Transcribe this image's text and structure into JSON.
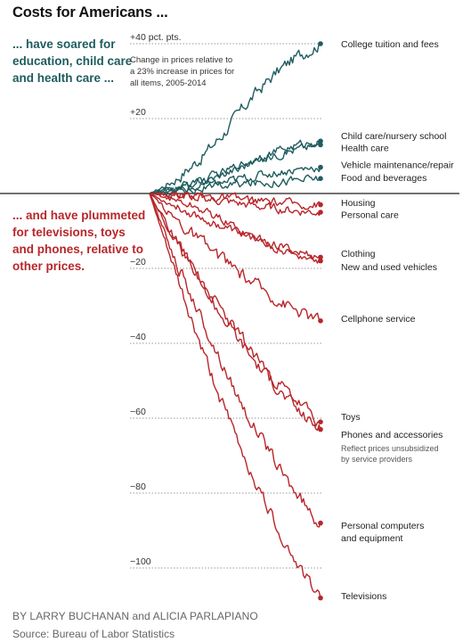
{
  "title": "Costs for Americans ...",
  "side_up": "... have soared for education, child care and health care ...",
  "side_down": "... and have plummeted for televisions, toys and phones, relative to other prices.",
  "byline": "BY LARRY BUCHANAN and ALICIA PARLAPIANO",
  "source": "Source: Bureau of Labor Statistics",
  "colors": {
    "up": "#1f5c5e",
    "down": "#b8262a",
    "grid": "#999999",
    "zero": "#444444"
  },
  "chart_data": {
    "type": "line",
    "subtitle": "Change in prices relative to a 23% increase in prices for all items, 2005-2014",
    "x": [
      "2005",
      "2014"
    ],
    "ylim": [
      -110,
      42
    ],
    "yticks": [
      {
        "value": 40,
        "label": "+40 pct. pts."
      },
      {
        "value": 20,
        "label": "+20"
      },
      {
        "value": -20,
        "label": "−20"
      },
      {
        "value": -40,
        "label": "−40"
      },
      {
        "value": -60,
        "label": "−60"
      },
      {
        "value": -80,
        "label": "−80"
      },
      {
        "value": -100,
        "label": "−100"
      }
    ],
    "series": [
      {
        "name": "College tuition and fees",
        "end": 40,
        "group": "up",
        "shape": "mid"
      },
      {
        "name": "Child care/nursery school",
        "end": 14,
        "group": "up",
        "shape": "mid"
      },
      {
        "name": "Health care",
        "end": 13,
        "group": "up",
        "shape": "mid"
      },
      {
        "name": "Vehicle maintenance/repair",
        "end": 7,
        "group": "up",
        "shape": "mid"
      },
      {
        "name": "Food and beverages",
        "end": 4,
        "group": "up",
        "shape": "early"
      },
      {
        "name": "Housing",
        "end": -3,
        "group": "down",
        "shape": "mid"
      },
      {
        "name": "Personal care",
        "end": -5,
        "group": "down",
        "shape": "mid"
      },
      {
        "name": "Clothing",
        "end": -17,
        "group": "down",
        "shape": "early"
      },
      {
        "name": "New and used vehicles",
        "end": -18,
        "group": "down",
        "shape": "mid"
      },
      {
        "name": "Cellphone service",
        "end": -34,
        "group": "down",
        "shape": "early"
      },
      {
        "name": "Toys",
        "end": -61,
        "group": "down",
        "shape": "early"
      },
      {
        "name": "Phones and accessories",
        "end": -63,
        "group": "down",
        "shape": "early"
      },
      {
        "name": "Personal computers and equipment",
        "end": -88,
        "group": "down",
        "shape": "early"
      },
      {
        "name": "Televisions",
        "end": -108,
        "group": "down",
        "shape": "early"
      }
    ],
    "labels": [
      {
        "value": 39,
        "lines": [
          "College tuition and fees"
        ]
      },
      {
        "value": 14.5,
        "lines": [
          "Child care/nursery school"
        ]
      },
      {
        "value": 11.3,
        "lines": [
          "Health care"
        ]
      },
      {
        "value": 6.8,
        "lines": [
          "Vehicle maintenance/repair"
        ]
      },
      {
        "value": 3.3,
        "lines": [
          "Food and beverages"
        ]
      },
      {
        "value": -3.3,
        "lines": [
          "Housing"
        ]
      },
      {
        "value": -6.6,
        "lines": [
          "Personal care"
        ]
      },
      {
        "value": -16.9,
        "lines": [
          "Clothing"
        ]
      },
      {
        "value": -20.5,
        "lines": [
          "New and used vehicles"
        ]
      },
      {
        "value": -34.3,
        "lines": [
          "Cellphone service"
        ]
      },
      {
        "value": -60.5,
        "lines": [
          "Toys"
        ]
      },
      {
        "value": -65.2,
        "lines": [
          "Phones and accessories"
        ]
      },
      {
        "value": -68.8,
        "lines": [
          "Reflect prices unsubsidized",
          "by service providers"
        ],
        "note": true
      },
      {
        "value": -89.5,
        "lines": [
          "Personal computers",
          "and equipment"
        ]
      },
      {
        "value": -108.3,
        "lines": [
          "Televisions"
        ]
      }
    ]
  }
}
